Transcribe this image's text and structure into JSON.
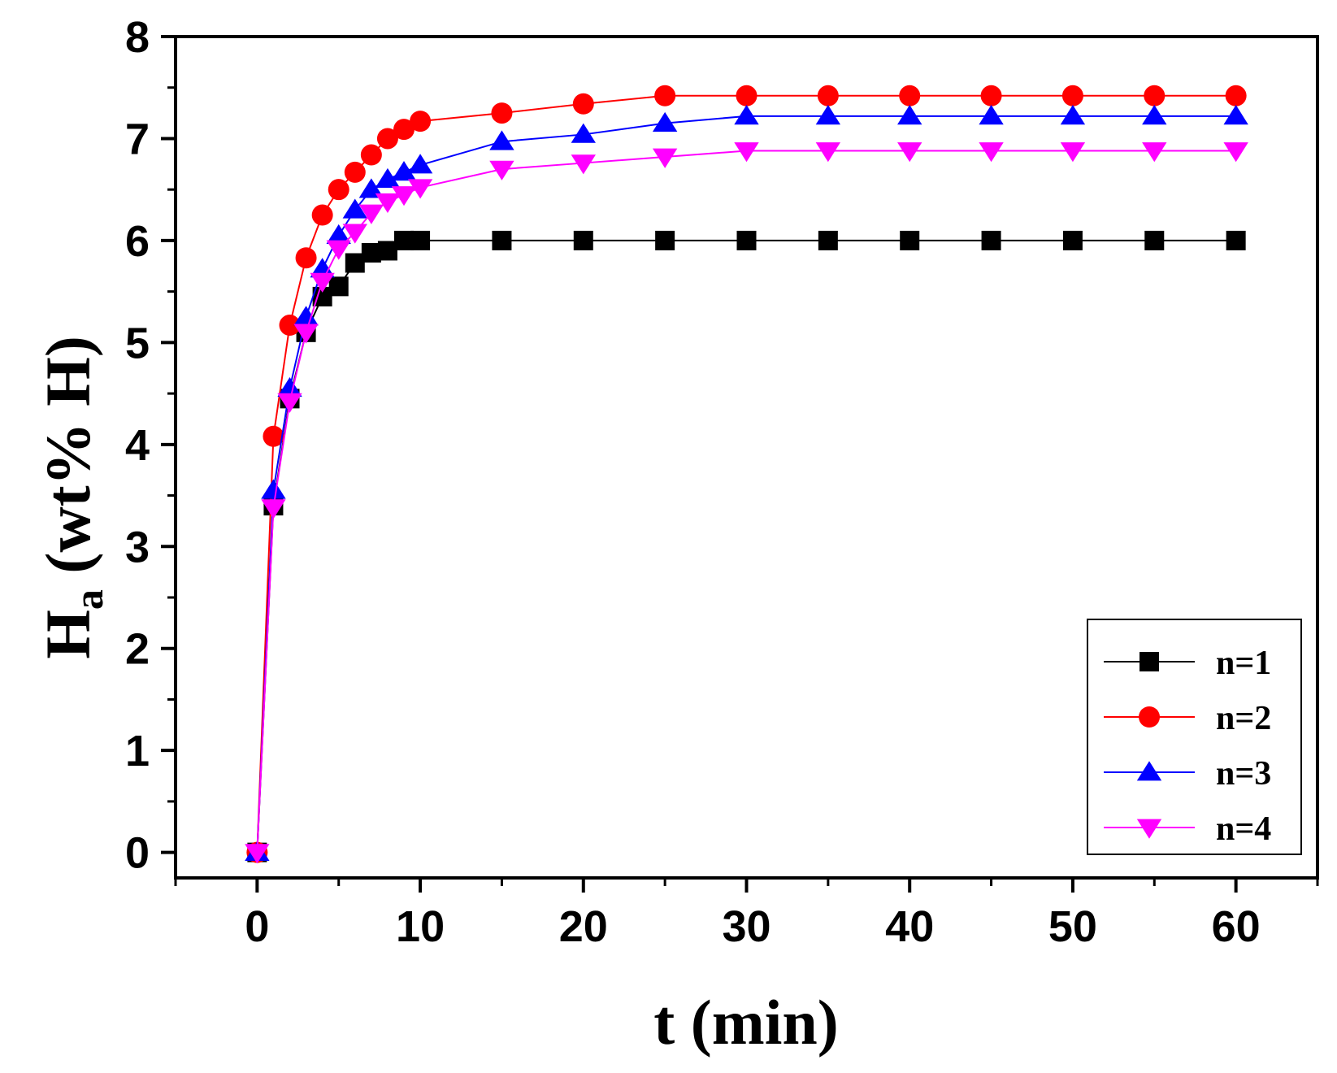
{
  "chart_data": {
    "type": "line",
    "xlabel": "t (min)",
    "ylabel": {
      "main": "H",
      "sub": "a",
      "rest": " (wt% H)"
    },
    "xlim": [
      -5,
      65
    ],
    "ylim": [
      -0.25,
      8
    ],
    "xticks": [
      0,
      10,
      20,
      30,
      40,
      50,
      60
    ],
    "yticks": [
      0,
      1,
      2,
      3,
      4,
      5,
      6,
      7,
      8
    ],
    "xtick_labels": [
      "0",
      "10",
      "20",
      "30",
      "40",
      "50",
      "60"
    ],
    "ytick_labels": [
      "0",
      "1",
      "2",
      "3",
      "4",
      "5",
      "6",
      "7",
      "8"
    ],
    "grid": false,
    "legend": "bottom-right",
    "x": [
      0,
      1,
      2,
      3,
      4,
      5,
      6,
      7,
      8,
      9,
      10,
      15,
      20,
      25,
      30,
      35,
      40,
      45,
      50,
      55,
      60
    ],
    "series": [
      {
        "name": "n=1",
        "color": "#000000",
        "marker": "square",
        "values": [
          0,
          3.4,
          4.45,
          5.1,
          5.45,
          5.55,
          5.78,
          5.88,
          5.9,
          6.0,
          6.0,
          6.0,
          6.0,
          6.0,
          6.0,
          6.0,
          6.0,
          6.0,
          6.0,
          6.0,
          6.0
        ]
      },
      {
        "name": "n=2",
        "color": "#ff0000",
        "marker": "circle",
        "values": [
          0,
          4.08,
          5.17,
          5.83,
          6.25,
          6.5,
          6.67,
          6.84,
          7.0,
          7.09,
          7.17,
          7.25,
          7.34,
          7.42,
          7.42,
          7.42,
          7.42,
          7.42,
          7.42,
          7.42,
          7.42
        ]
      },
      {
        "name": "n=3",
        "color": "#0000ff",
        "marker": "triangle-up",
        "values": [
          0,
          3.55,
          4.55,
          5.25,
          5.72,
          6.05,
          6.3,
          6.5,
          6.6,
          6.67,
          6.74,
          6.97,
          7.04,
          7.15,
          7.22,
          7.22,
          7.22,
          7.22,
          7.22,
          7.22,
          7.22
        ]
      },
      {
        "name": "n=4",
        "color": "#ff00ff",
        "marker": "triangle-down",
        "values": [
          0,
          3.38,
          4.42,
          5.1,
          5.6,
          5.92,
          6.08,
          6.27,
          6.38,
          6.45,
          6.52,
          6.7,
          6.76,
          6.82,
          6.88,
          6.88,
          6.88,
          6.88,
          6.88,
          6.88,
          6.88
        ]
      }
    ]
  }
}
